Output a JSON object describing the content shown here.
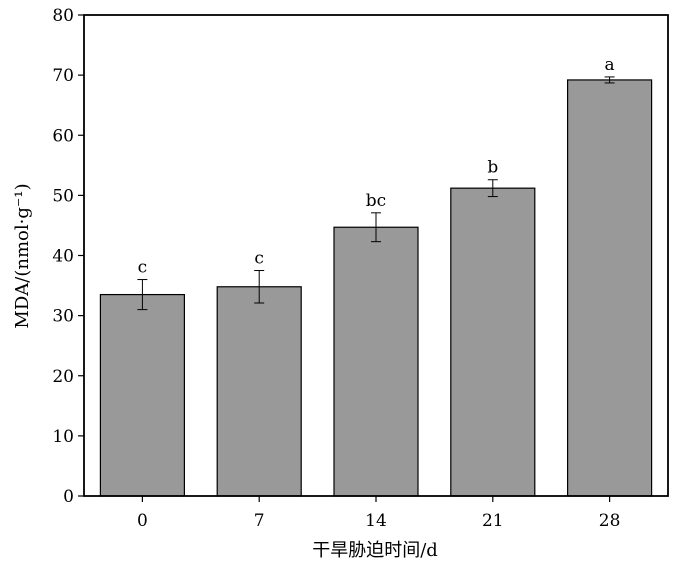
{
  "chart_data": {
    "type": "bar",
    "categories": [
      "0",
      "7",
      "14",
      "21",
      "28"
    ],
    "values": [
      33.5,
      34.8,
      44.7,
      51.2,
      69.2
    ],
    "errors": [
      2.5,
      2.7,
      2.4,
      1.4,
      0.5
    ],
    "significance": [
      "c",
      "c",
      "bc",
      "b",
      "a"
    ],
    "xlabel": "干旱胁迫时间/d",
    "ylabel": "MDA/(nmol·g⁻¹)",
    "ylim": [
      0,
      80
    ],
    "yticks": [
      "0",
      "10",
      "20",
      "30",
      "40",
      "50",
      "60",
      "70",
      "80"
    ],
    "grid": false,
    "colors": {
      "bar": "#999999",
      "bar_edge": "#000000",
      "axis": "#000000"
    }
  }
}
